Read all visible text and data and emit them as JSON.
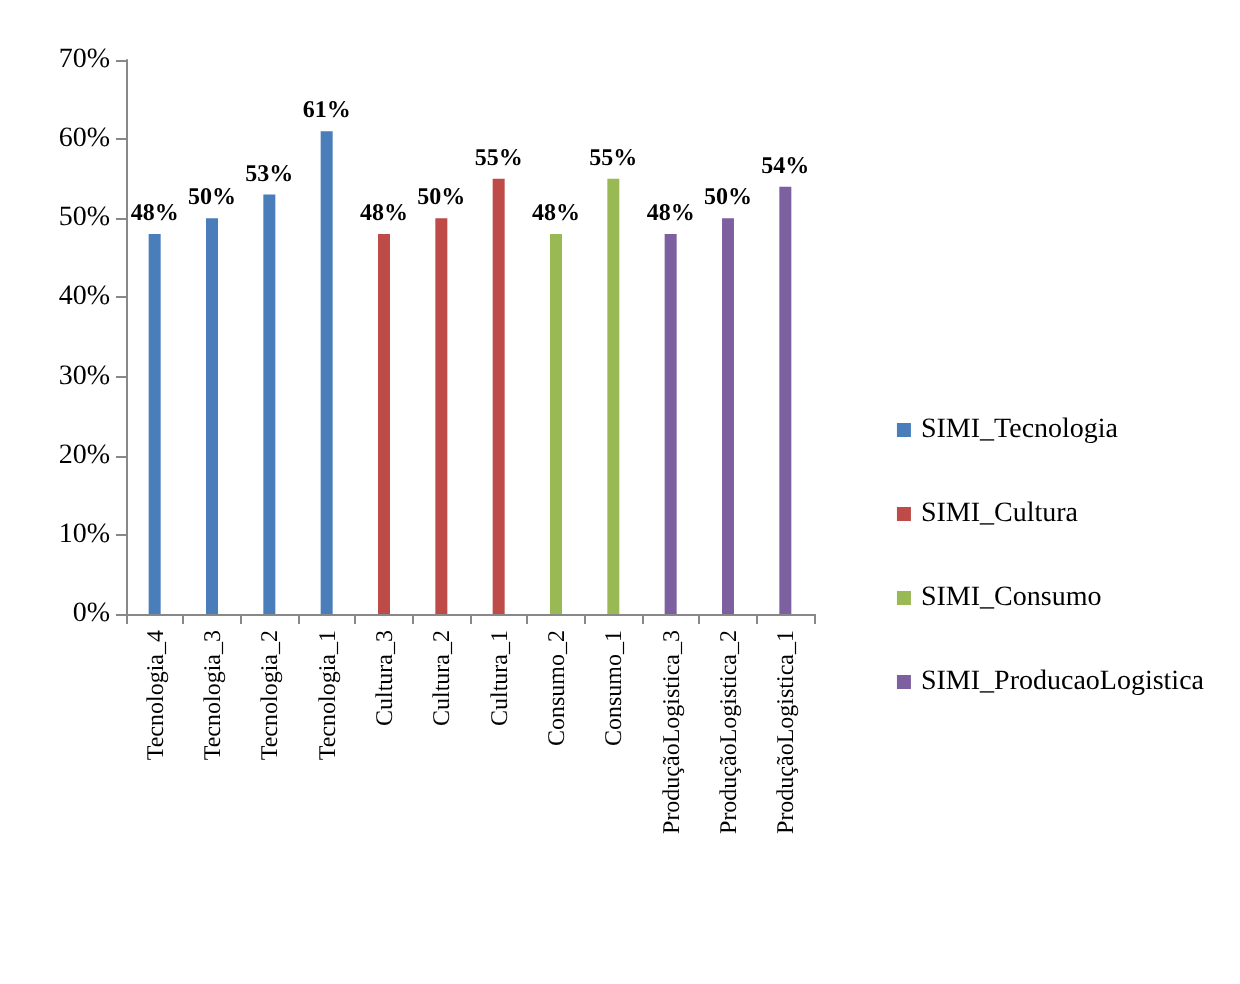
{
  "chart_data": {
    "type": "bar",
    "categories": [
      "Tecnologia_4",
      "Tecnologia_3",
      "Tecnologia_2",
      "Tecnologia_1",
      "Cultura_3",
      "Cultura_2",
      "Cultura_1",
      "Consumo_2",
      "Consumo_1",
      "ProduçãoLogistica_3",
      "ProduçãoLogistica_2",
      "ProduçãoLogistica_1"
    ],
    "series": [
      {
        "name": "SIMI_Tecnologia",
        "color": "#4a7ebb",
        "values": [
          48,
          50,
          53,
          61,
          null,
          null,
          null,
          null,
          null,
          null,
          null,
          null
        ],
        "value_labels": [
          "48%",
          "50%",
          "53%",
          "61%",
          null,
          null,
          null,
          null,
          null,
          null,
          null,
          null
        ]
      },
      {
        "name": "SIMI_Cultura",
        "color": "#be4b48",
        "values": [
          null,
          null,
          null,
          null,
          48,
          50,
          55,
          null,
          null,
          null,
          null,
          null
        ],
        "value_labels": [
          null,
          null,
          null,
          null,
          "48%",
          "50%",
          "55%",
          null,
          null,
          null,
          null,
          null
        ]
      },
      {
        "name": "SIMI_Consumo",
        "color": "#98b954",
        "values": [
          null,
          null,
          null,
          null,
          null,
          null,
          null,
          48,
          55,
          null,
          null,
          null
        ],
        "value_labels": [
          null,
          null,
          null,
          null,
          null,
          null,
          null,
          "48%",
          "55%",
          null,
          null,
          null
        ]
      },
      {
        "name": "SIMI_ProducaoLogistica",
        "color": "#7d60a0",
        "values": [
          null,
          null,
          null,
          null,
          null,
          null,
          null,
          null,
          null,
          48,
          50,
          54
        ],
        "value_labels": [
          null,
          null,
          null,
          null,
          null,
          null,
          null,
          null,
          null,
          "48%",
          "50%",
          "54%"
        ]
      }
    ],
    "ylim": [
      0,
      70
    ],
    "yticks": [
      {
        "value": 0,
        "label": "0%"
      },
      {
        "value": 10,
        "label": "10%"
      },
      {
        "value": 20,
        "label": "20%"
      },
      {
        "value": 30,
        "label": "30%"
      },
      {
        "value": 40,
        "label": "40%"
      },
      {
        "value": 50,
        "label": "50%"
      },
      {
        "value": 60,
        "label": "60%"
      },
      {
        "value": 70,
        "label": "70%"
      }
    ],
    "grid": false,
    "legend": "right"
  }
}
